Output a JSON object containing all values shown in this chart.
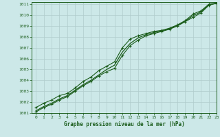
{
  "title": "Graphe pression niveau de la mer (hPa)",
  "bg_color": "#cce8e8",
  "line_color": "#1a5c1a",
  "grid_color": "#b0cccc",
  "xlim": [
    -0.5,
    23
  ],
  "ylim": [
    1001,
    1011.2
  ],
  "yticks": [
    1001,
    1002,
    1003,
    1004,
    1005,
    1006,
    1007,
    1008,
    1009,
    1010,
    1011
  ],
  "xticks": [
    0,
    1,
    2,
    3,
    4,
    5,
    6,
    7,
    8,
    9,
    10,
    11,
    12,
    13,
    14,
    15,
    16,
    17,
    18,
    19,
    20,
    21,
    22,
    23
  ],
  "series1_x": [
    0,
    1,
    2,
    3,
    4,
    5,
    6,
    7,
    8,
    9,
    10,
    11,
    12,
    13,
    14,
    15,
    16,
    17,
    18,
    19,
    20,
    21,
    22,
    23
  ],
  "series1_y": [
    1001.5,
    1001.9,
    1002.2,
    1002.6,
    1002.8,
    1003.3,
    1003.9,
    1004.3,
    1004.9,
    1005.3,
    1005.7,
    1007.0,
    1007.8,
    1008.1,
    1008.3,
    1008.5,
    1008.6,
    1008.8,
    1009.1,
    1009.5,
    1010.1,
    1010.4,
    1011.0,
    1011.1
  ],
  "series2_x": [
    0,
    1,
    2,
    3,
    4,
    5,
    6,
    7,
    8,
    9,
    10,
    11,
    12,
    13,
    14,
    15,
    16,
    17,
    18,
    19,
    20,
    21,
    22,
    23
  ],
  "series2_y": [
    1001.1,
    1001.5,
    1001.8,
    1002.2,
    1002.5,
    1003.0,
    1003.5,
    1003.9,
    1004.4,
    1004.8,
    1005.1,
    1006.3,
    1007.2,
    1007.7,
    1008.1,
    1008.3,
    1008.5,
    1008.7,
    1009.0,
    1009.4,
    1009.8,
    1010.2,
    1010.9,
    1011.1
  ],
  "series3_x": [
    0,
    1,
    2,
    3,
    4,
    5,
    6,
    7,
    8,
    9,
    10,
    11,
    12,
    13,
    14,
    15,
    16,
    17,
    18,
    19,
    20,
    21,
    22,
    23
  ],
  "series3_y": [
    1001.2,
    1001.6,
    1001.9,
    1002.3,
    1002.6,
    1003.1,
    1003.6,
    1004.0,
    1004.5,
    1005.0,
    1005.4,
    1006.6,
    1007.4,
    1007.9,
    1008.2,
    1008.4,
    1008.55,
    1008.75,
    1009.05,
    1009.45,
    1009.95,
    1010.3,
    1010.95,
    1011.1
  ]
}
